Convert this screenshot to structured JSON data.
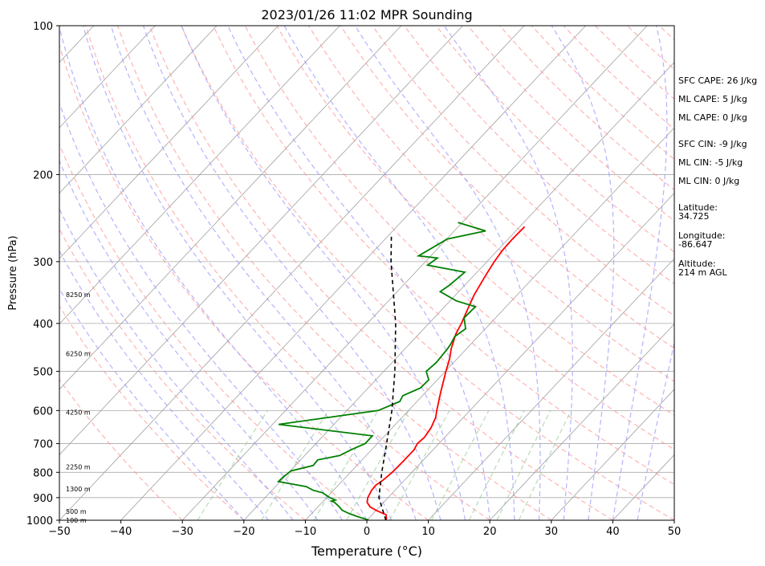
{
  "chart_data": {
    "type": "line",
    "title": "2023/01/26 11:02 MPR Sounding",
    "xlabel": "Temperature (°C)",
    "ylabel": "Pressure (hPa)",
    "xlim": [
      -50,
      50
    ],
    "ylim": [
      1000,
      100
    ],
    "y_scale": "log",
    "x_ticks": [
      -50,
      -40,
      -30,
      -20,
      -10,
      0,
      10,
      20,
      30,
      40,
      50
    ],
    "x_tick_labels": [
      "−50",
      "−40",
      "−30",
      "−20",
      "−10",
      "0",
      "10",
      "20",
      "30",
      "40",
      "50"
    ],
    "y_ticks": [
      1000,
      900,
      800,
      700,
      600,
      500,
      400,
      300,
      200,
      100
    ],
    "y_tick_labels": [
      "1000",
      "900",
      "800",
      "700",
      "600",
      "500",
      "400",
      "300",
      "200",
      "100"
    ],
    "grid": true,
    "colors": {
      "temperature": "#ff0000",
      "dewpoint": "#008000",
      "parcel": "#000000",
      "dry_adiabats": "#ff9999",
      "moist_adiabats": "#9999ff",
      "mixing_ratio": "#99cc99",
      "isotherms": "#a0a0a0",
      "isobars": "#aaaaaa"
    },
    "series": [
      {
        "key": "temperature",
        "points": [
          {
            "p": 997,
            "t": 3.1
          },
          {
            "p": 975,
            "t": 2.3
          },
          {
            "p": 955,
            "t": 0.0
          },
          {
            "p": 940,
            "t": -1.5
          },
          {
            "p": 920,
            "t": -2.7
          },
          {
            "p": 900,
            "t": -3.3
          },
          {
            "p": 870,
            "t": -3.8
          },
          {
            "p": 850,
            "t": -3.9
          },
          {
            "p": 830,
            "t": -3.5
          },
          {
            "p": 800,
            "t": -3.2
          },
          {
            "p": 760,
            "t": -3.1
          },
          {
            "p": 720,
            "t": -3.1
          },
          {
            "p": 700,
            "t": -3.5
          },
          {
            "p": 680,
            "t": -3.3
          },
          {
            "p": 650,
            "t": -3.7
          },
          {
            "p": 620,
            "t": -4.5
          },
          {
            "p": 600,
            "t": -5.4
          },
          {
            "p": 550,
            "t": -7.6
          },
          {
            "p": 500,
            "t": -9.9
          },
          {
            "p": 470,
            "t": -11.3
          },
          {
            "p": 450,
            "t": -12.5
          },
          {
            "p": 420,
            "t": -14.0
          },
          {
            "p": 400,
            "t": -14.7
          },
          {
            "p": 380,
            "t": -15.6
          },
          {
            "p": 350,
            "t": -17.0
          },
          {
            "p": 320,
            "t": -18.1
          },
          {
            "p": 300,
            "t": -18.8
          },
          {
            "p": 285,
            "t": -19.2
          },
          {
            "p": 270,
            "t": -19.3
          },
          {
            "p": 255,
            "t": -19.2
          }
        ]
      },
      {
        "key": "dewpoint",
        "points": [
          {
            "p": 1000,
            "t": 0.3
          },
          {
            "p": 995,
            "t": -0.3
          },
          {
            "p": 985,
            "t": -1.8
          },
          {
            "p": 970,
            "t": -3.8
          },
          {
            "p": 955,
            "t": -5.5
          },
          {
            "p": 940,
            "t": -6.5
          },
          {
            "p": 920,
            "t": -8.0
          },
          {
            "p": 915,
            "t": -8.7
          },
          {
            "p": 910,
            "t": -8.2
          },
          {
            "p": 900,
            "t": -9.5
          },
          {
            "p": 880,
            "t": -11.4
          },
          {
            "p": 870,
            "t": -13.3
          },
          {
            "p": 855,
            "t": -15.0
          },
          {
            "p": 840,
            "t": -19.0
          },
          {
            "p": 835,
            "t": -20.3
          },
          {
            "p": 815,
            "t": -20.2
          },
          {
            "p": 805,
            "t": -20.0
          },
          {
            "p": 795,
            "t": -19.9
          },
          {
            "p": 775,
            "t": -17.1
          },
          {
            "p": 755,
            "t": -17.2
          },
          {
            "p": 740,
            "t": -14.3
          },
          {
            "p": 720,
            "t": -13.3
          },
          {
            "p": 700,
            "t": -12.0
          },
          {
            "p": 675,
            "t": -12.0
          },
          {
            "p": 640,
            "t": -29.0
          },
          {
            "p": 600,
            "t": -14.9
          },
          {
            "p": 575,
            "t": -12.8
          },
          {
            "p": 560,
            "t": -13.2
          },
          {
            "p": 540,
            "t": -11.5
          },
          {
            "p": 520,
            "t": -11.4
          },
          {
            "p": 500,
            "t": -13.1
          },
          {
            "p": 480,
            "t": -12.8
          },
          {
            "p": 450,
            "t": -13.1
          },
          {
            "p": 440,
            "t": -13.3
          },
          {
            "p": 425,
            "t": -13.8
          },
          {
            "p": 410,
            "t": -13.2
          },
          {
            "p": 390,
            "t": -15.1
          },
          {
            "p": 370,
            "t": -15.0
          },
          {
            "p": 360,
            "t": -19.0
          },
          {
            "p": 345,
            "t": -23.0
          },
          {
            "p": 335,
            "t": -22.5
          },
          {
            "p": 315,
            "t": -22.0
          },
          {
            "p": 305,
            "t": -29.1
          },
          {
            "p": 295,
            "t": -28.6
          },
          {
            "p": 292,
            "t": -32.0
          },
          {
            "p": 270,
            "t": -29.9
          },
          {
            "p": 260,
            "t": -24.9
          },
          {
            "p": 250,
            "t": -30.7
          }
        ]
      },
      {
        "key": "parcel",
        "dashed": true,
        "points": [
          {
            "p": 1000,
            "t": 3.1
          },
          {
            "p": 900,
            "t": -1.5
          },
          {
            "p": 800,
            "t": -4.9
          },
          {
            "p": 700,
            "t": -8.5
          },
          {
            "p": 600,
            "t": -12.7
          },
          {
            "p": 500,
            "t": -18.2
          },
          {
            "p": 400,
            "t": -25.4
          },
          {
            "p": 300,
            "t": -35.6
          },
          {
            "p": 265,
            "t": -39.6
          }
        ]
      }
    ],
    "height_labels": [
      {
        "p": 1000,
        "text": "100 m"
      },
      {
        "p": 960,
        "text": "500 m"
      },
      {
        "p": 865,
        "text": "1300 m"
      },
      {
        "p": 780,
        "text": "2250 m"
      },
      {
        "p": 605,
        "text": "4250 m"
      },
      {
        "p": 460,
        "text": "6250 m"
      },
      {
        "p": 350,
        "text": "8250 m"
      }
    ],
    "annotations": [
      {
        "text": "SFC CAPE: 26 J/kg"
      },
      {
        "text": "ML CAPE: 5 J/kg"
      },
      {
        "text": "ML CAPE: 0 J/kg"
      },
      {
        "text": "SFC CIN: -9 J/kg"
      },
      {
        "text": "ML CIN: -5 J/kg"
      },
      {
        "text": "ML CIN: 0 J/kg"
      },
      {
        "text": "Latitude:\n34.725"
      },
      {
        "text": "Longitude:\n-86.647"
      },
      {
        "text": "Altitude:\n214 m AGL"
      }
    ]
  }
}
